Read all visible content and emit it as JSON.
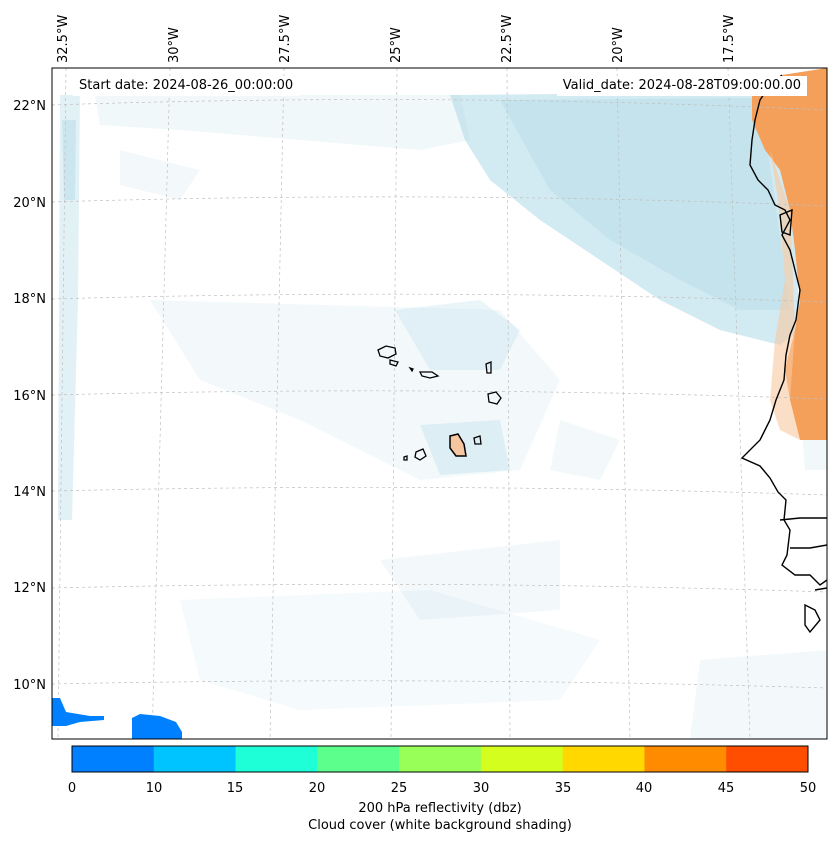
{
  "header": {
    "start_date": "Start date: 2024-08-26_00:00:00",
    "valid_date": "Valid_date: 2024-08-28T09:00:00.00"
  },
  "axes": {
    "lon_labels": [
      "32.5°W",
      "30°W",
      "27.5°W",
      "25°W",
      "22.5°W",
      "20°W",
      "17.5°W"
    ],
    "lat_labels": [
      "22°N",
      "20°N",
      "18°N",
      "16°N",
      "14°N",
      "12°N",
      "10°N"
    ]
  },
  "colorbar": {
    "ticks": [
      "0",
      "10",
      "15",
      "20",
      "25",
      "30",
      "35",
      "40",
      "45",
      "50"
    ],
    "colors": [
      "#0080ff",
      "#00c4ff",
      "#1effd8",
      "#5cff8c",
      "#98ff58",
      "#d4ff1e",
      "#ffd800",
      "#ff8c00",
      "#ff4e00"
    ],
    "label_line1": "200 hPa reflectivity (dbz)",
    "label_line2": "Cloud cover (white background shading)"
  },
  "palette": {
    "cloud": "#add8e6",
    "land": "#f5a05a",
    "reflectivity_low": "#0080ff"
  }
}
